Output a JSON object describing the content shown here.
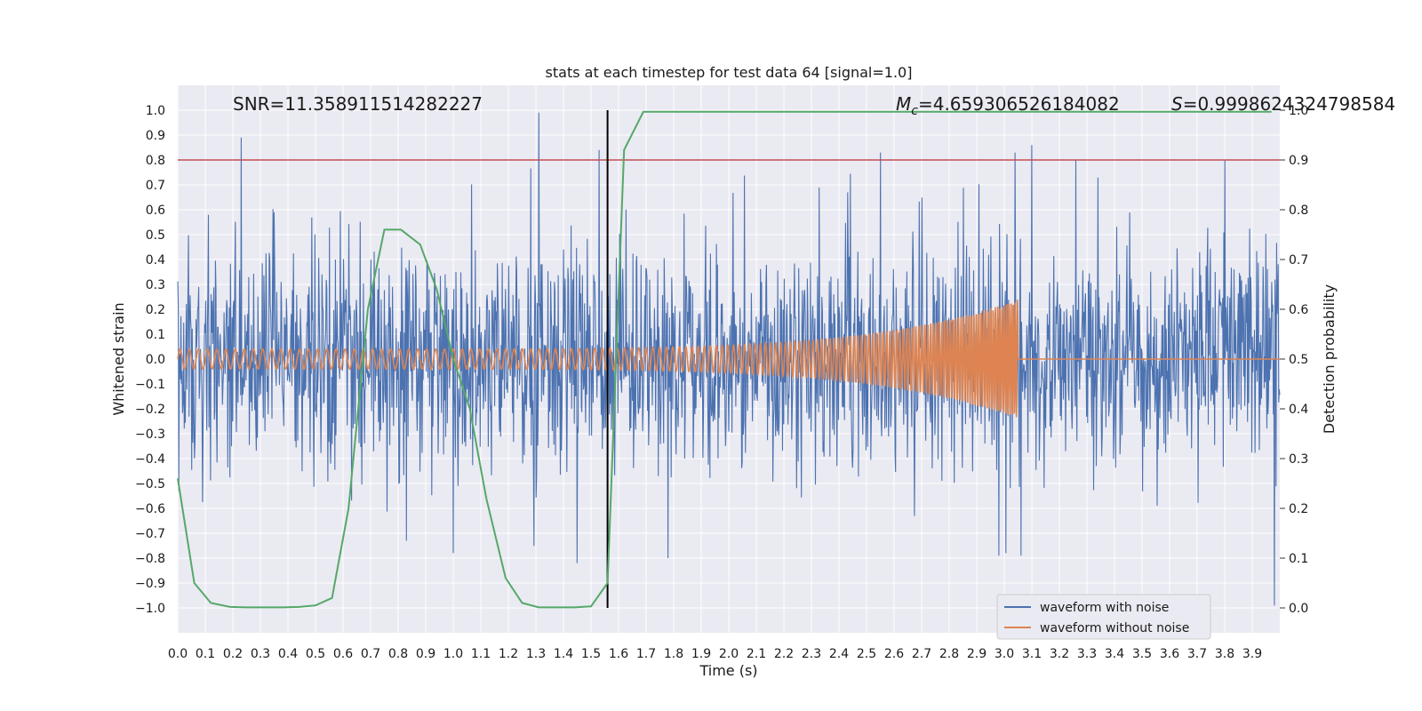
{
  "chart_data": {
    "type": "line",
    "title": "stats at each timestep for test data 64 [signal=1.0]",
    "xlabel": "Time (s)",
    "ylabel": "Whitened strain",
    "ylabel_right": "Detection probability",
    "xlim": [
      0.0,
      4.0
    ],
    "ylim": [
      -1.1,
      1.1
    ],
    "ylim_right": [
      -0.05,
      1.05
    ],
    "x_ticks": [
      0.0,
      0.1,
      0.2,
      0.3,
      0.4,
      0.5,
      0.6,
      0.7,
      0.8,
      0.9,
      1.0,
      1.1,
      1.2,
      1.3,
      1.4,
      1.5,
      1.6,
      1.7,
      1.8,
      1.9,
      2.0,
      2.1,
      2.2,
      2.3,
      2.4,
      2.5,
      2.6,
      2.7,
      2.8,
      2.9,
      3.0,
      3.1,
      3.2,
      3.3,
      3.4,
      3.5,
      3.6,
      3.7,
      3.8,
      3.9
    ],
    "x_tick_labels": [
      "0.0",
      "0.1",
      "0.2",
      "0.3",
      "0.4",
      "0.5",
      "0.6",
      "0.7",
      "0.8",
      "0.9",
      "1.0",
      "1.1",
      "1.2",
      "1.3",
      "1.4",
      "1.5",
      "1.6",
      "1.7",
      "1.8",
      "1.9",
      "2.0",
      "2.1",
      "2.2",
      "2.3",
      "2.4",
      "2.5",
      "2.6",
      "2.7",
      "2.8",
      "2.9",
      "3.0",
      "3.1",
      "3.2",
      "3.3",
      "3.4",
      "3.5",
      "3.6",
      "3.7",
      "3.8",
      "3.9"
    ],
    "y_ticks": [
      1.0,
      0.9,
      0.8,
      0.7,
      0.6,
      0.5,
      0.4,
      0.3,
      0.2,
      0.1,
      0.0,
      -0.1,
      -0.2,
      -0.3,
      -0.4,
      -0.5,
      -0.6,
      -0.7,
      -0.8,
      -0.9,
      -1.0
    ],
    "y_tick_labels": [
      "1.0",
      "0.9",
      "0.8",
      "0.7",
      "0.6",
      "0.5",
      "0.4",
      "0.3",
      "0.2",
      "0.1",
      "0.0",
      "−0.1",
      "−0.2",
      "−0.3",
      "−0.4",
      "−0.5",
      "−0.6",
      "−0.7",
      "−0.8",
      "−0.9",
      "−1.0"
    ],
    "y_right_ticks": [
      1.0,
      0.9,
      0.8,
      0.7,
      0.6,
      0.5,
      0.4,
      0.3,
      0.2,
      0.1,
      0.0
    ],
    "y_right_tick_labels": [
      "1.0",
      "0.9",
      "0.8",
      "0.7",
      "0.6",
      "0.5",
      "0.4",
      "0.3",
      "0.2",
      "0.1",
      "0.0"
    ],
    "annotations": {
      "snr": "SNR=11.358911514282227",
      "mc_symbol": "M",
      "mc_subscript": "c",
      "mc_value": "=4.659306526184082",
      "s_symbol": "S",
      "s_value": "=0.9998624324798584"
    },
    "threshold_right": 0.9,
    "marker_time": 1.56,
    "series": [
      {
        "name": "waveform with noise",
        "color": "#4c72b0",
        "axis": "left",
        "kind": "noise",
        "noise_std": 0.22,
        "sample_rate_hz": 512,
        "peaks": [
          [
            0.23,
            0.89
          ],
          [
            1.31,
            0.99
          ],
          [
            1.53,
            0.84
          ],
          [
            2.55,
            0.83
          ],
          [
            3.04,
            0.83
          ],
          [
            3.1,
            0.86
          ],
          [
            3.26,
            0.8
          ],
          [
            3.8,
            0.8
          ],
          [
            1.45,
            -0.82
          ],
          [
            2.98,
            -0.79
          ],
          [
            3.06,
            -0.79
          ],
          [
            3.98,
            -0.99
          ],
          [
            0.83,
            -0.73
          ],
          [
            1.78,
            -0.8
          ]
        ]
      },
      {
        "name": "waveform without noise",
        "color": "#dd8452",
        "axis": "left",
        "kind": "chirp",
        "start_amp": 0.04,
        "end_amp": 0.24,
        "f_start_hz": 30,
        "f_end_hz": 130,
        "merger_time": 3.05
      },
      {
        "name": "detection probability",
        "color": "#55a868",
        "axis": "right",
        "kind": "line",
        "x": [
          0.0,
          0.06,
          0.12,
          0.19,
          0.25,
          0.31,
          0.38,
          0.44,
          0.5,
          0.56,
          0.62,
          0.69,
          0.75,
          0.81,
          0.88,
          0.94,
          1.0,
          1.06,
          1.12,
          1.19,
          1.25,
          1.31,
          1.38,
          1.44,
          1.5,
          1.56,
          1.62,
          1.69,
          1.75,
          2.0,
          2.5,
          3.0,
          3.5,
          3.97
        ],
        "y": [
          0.26,
          0.05,
          0.01,
          0.002,
          0.001,
          0.001,
          0.001,
          0.002,
          0.005,
          0.02,
          0.2,
          0.6,
          0.76,
          0.76,
          0.73,
          0.64,
          0.5,
          0.4,
          0.22,
          0.06,
          0.01,
          0.001,
          0.001,
          0.001,
          0.003,
          0.05,
          0.92,
          0.997,
          0.997,
          0.997,
          0.997,
          0.997,
          0.997,
          0.997
        ]
      }
    ],
    "legend": {
      "position": "bottom-right",
      "entries": [
        "waveform with noise",
        "waveform without noise"
      ]
    },
    "grid": true
  }
}
